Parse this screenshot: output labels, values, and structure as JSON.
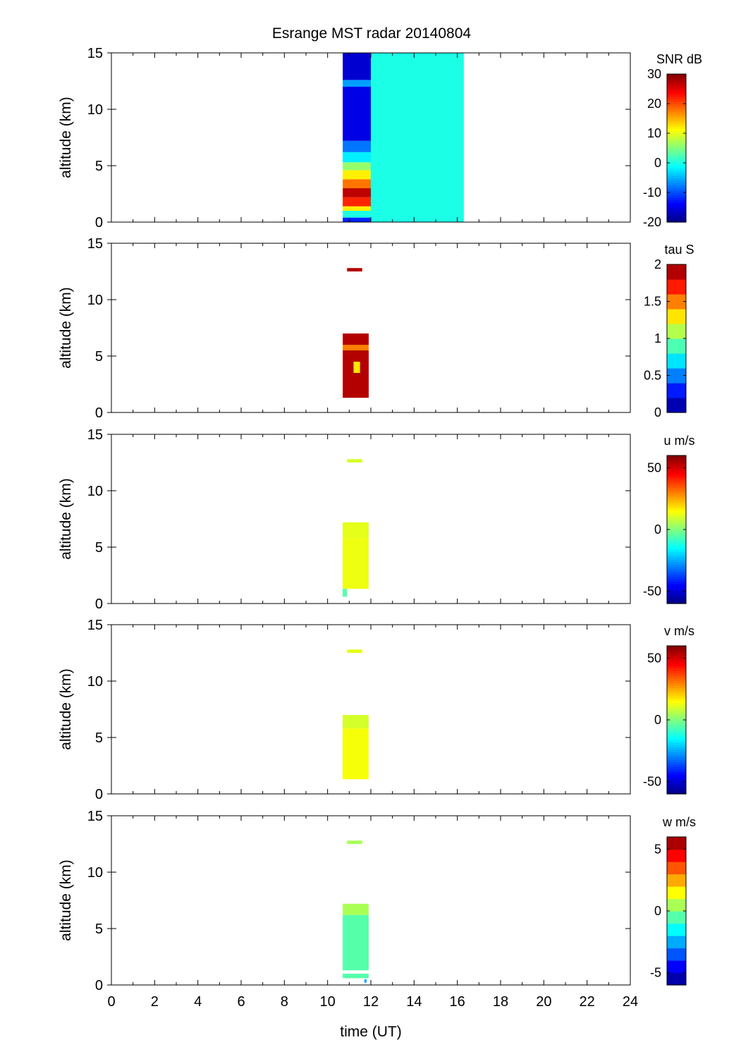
{
  "title": "Esrange MST radar 20140804",
  "xlabel": "time (UT)",
  "ylabel": "altitude (km)",
  "x_ticks": [
    0,
    2,
    4,
    6,
    8,
    10,
    12,
    14,
    16,
    18,
    20,
    22,
    24
  ],
  "y_ticks": [
    0,
    5,
    10,
    15
  ],
  "chart_data": [
    {
      "type": "heatmap",
      "panel": "snr",
      "colorbar_label": "SNR dB",
      "clim": [
        -20,
        30
      ],
      "colorbar_ticks": [
        -20,
        -10,
        0,
        10,
        20,
        30
      ],
      "colorbar_style": "continuous",
      "xlim": [
        0,
        24
      ],
      "ylim": [
        0,
        15
      ],
      "blocks": [
        {
          "x": [
            10.7,
            12.0
          ],
          "y": [
            0.0,
            0.4
          ],
          "value": -12
        },
        {
          "x": [
            10.7,
            12.0
          ],
          "y": [
            0.4,
            1.0
          ],
          "value": 0
        },
        {
          "x": [
            10.7,
            12.0
          ],
          "y": [
            1.0,
            1.4
          ],
          "value": 12
        },
        {
          "x": [
            10.7,
            12.0
          ],
          "y": [
            1.4,
            2.2
          ],
          "value": 22
        },
        {
          "x": [
            10.7,
            12.0
          ],
          "y": [
            2.2,
            3.0
          ],
          "value": 27
        },
        {
          "x": [
            10.7,
            12.0
          ],
          "y": [
            3.0,
            3.8
          ],
          "value": 18
        },
        {
          "x": [
            10.7,
            12.0
          ],
          "y": [
            3.8,
            4.6
          ],
          "value": 12
        },
        {
          "x": [
            10.7,
            12.0
          ],
          "y": [
            4.6,
            5.3
          ],
          "value": 6
        },
        {
          "x": [
            10.7,
            12.0
          ],
          "y": [
            5.3,
            6.2
          ],
          "value": -2
        },
        {
          "x": [
            10.7,
            12.0
          ],
          "y": [
            6.2,
            7.2
          ],
          "value": -8
        },
        {
          "x": [
            10.7,
            12.0
          ],
          "y": [
            7.2,
            12.0
          ],
          "value": -15
        },
        {
          "x": [
            10.7,
            12.0
          ],
          "y": [
            12.0,
            12.6
          ],
          "value": -6
        },
        {
          "x": [
            10.7,
            12.0
          ],
          "y": [
            12.6,
            15.0
          ],
          "value": -16
        },
        {
          "x": [
            12.0,
            16.3
          ],
          "y": [
            0.0,
            15.0
          ],
          "value": 0
        }
      ]
    },
    {
      "type": "heatmap",
      "panel": "tau",
      "colorbar_label": "tau S",
      "clim": [
        0,
        2
      ],
      "colorbar_ticks": [
        0,
        0.5,
        1,
        1.5,
        2
      ],
      "colorbar_style": "discrete",
      "colorbar_levels": 10,
      "xlim": [
        0,
        24
      ],
      "ylim": [
        0,
        15
      ],
      "blocks": [
        {
          "x": [
            10.9,
            11.6
          ],
          "y": [
            12.5,
            12.8
          ],
          "value": 2.0
        },
        {
          "x": [
            10.7,
            11.9
          ],
          "y": [
            6.0,
            7.0
          ],
          "value": 2.0
        },
        {
          "x": [
            10.7,
            11.9
          ],
          "y": [
            5.5,
            6.0
          ],
          "value": 1.4
        },
        {
          "x": [
            10.7,
            11.9
          ],
          "y": [
            1.3,
            5.5
          ],
          "value": 2.0
        },
        {
          "x": [
            11.2,
            11.5
          ],
          "y": [
            3.5,
            4.5
          ],
          "value": 1.3
        }
      ]
    },
    {
      "type": "heatmap",
      "panel": "u",
      "colorbar_label": "u m/s",
      "clim": [
        -60,
        60
      ],
      "colorbar_ticks": [
        -50,
        0,
        50
      ],
      "colorbar_style": "continuous",
      "xlim": [
        0,
        24
      ],
      "ylim": [
        0,
        15
      ],
      "blocks": [
        {
          "x": [
            10.9,
            11.6
          ],
          "y": [
            12.5,
            12.8
          ],
          "value": 10
        },
        {
          "x": [
            10.7,
            11.9
          ],
          "y": [
            5.8,
            7.2
          ],
          "value": 12
        },
        {
          "x": [
            10.7,
            11.9
          ],
          "y": [
            1.3,
            5.8
          ],
          "value": 13
        },
        {
          "x": [
            10.7,
            10.9
          ],
          "y": [
            0.6,
            1.3
          ],
          "value": -5
        }
      ]
    },
    {
      "type": "heatmap",
      "panel": "v",
      "colorbar_label": "v m/s",
      "clim": [
        -60,
        60
      ],
      "colorbar_ticks": [
        -50,
        0,
        50
      ],
      "colorbar_style": "continuous",
      "xlim": [
        0,
        24
      ],
      "ylim": [
        0,
        15
      ],
      "blocks": [
        {
          "x": [
            10.9,
            11.6
          ],
          "y": [
            12.5,
            12.8
          ],
          "value": 12
        },
        {
          "x": [
            10.7,
            11.9
          ],
          "y": [
            5.8,
            7.0
          ],
          "value": 10
        },
        {
          "x": [
            10.7,
            11.9
          ],
          "y": [
            1.3,
            5.8
          ],
          "value": 14
        }
      ]
    },
    {
      "type": "heatmap",
      "panel": "w",
      "colorbar_label": "w m/s",
      "clim": [
        -6,
        6
      ],
      "colorbar_ticks": [
        -5,
        0,
        5
      ],
      "colorbar_style": "discrete",
      "colorbar_levels": 12,
      "xlim": [
        0,
        24
      ],
      "ylim": [
        0,
        15
      ],
      "blocks": [
        {
          "x": [
            10.9,
            11.6
          ],
          "y": [
            12.5,
            12.8
          ],
          "value": 0.5
        },
        {
          "x": [
            10.7,
            11.9
          ],
          "y": [
            6.2,
            7.2
          ],
          "value": 0.6
        },
        {
          "x": [
            10.7,
            11.9
          ],
          "y": [
            1.3,
            6.2
          ],
          "value": -0.4
        },
        {
          "x": [
            10.7,
            11.9
          ],
          "y": [
            0.6,
            1.0
          ],
          "value": -0.3
        },
        {
          "x": [
            11.7,
            11.8
          ],
          "y": [
            0.2,
            0.5
          ],
          "value": -2.5
        }
      ]
    }
  ]
}
